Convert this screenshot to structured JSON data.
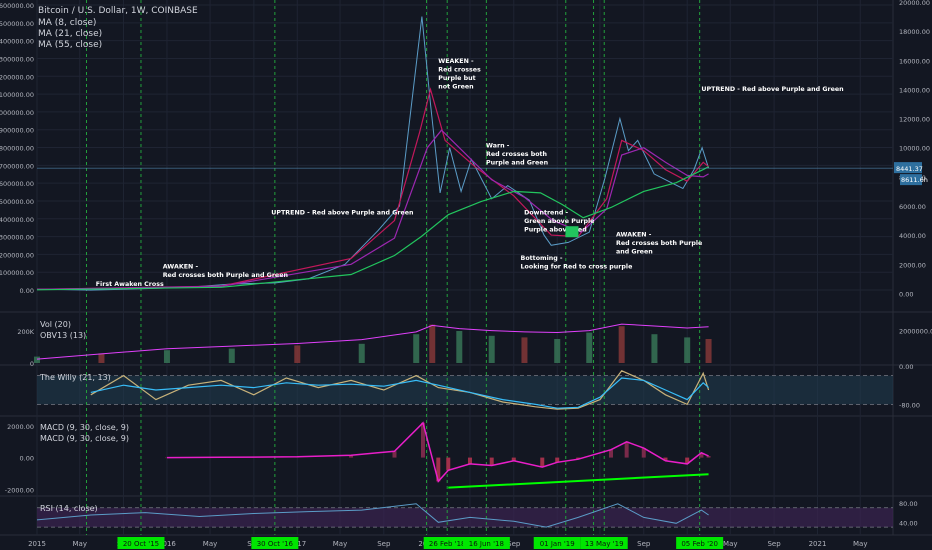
{
  "header": {
    "title": "Bitcoin / U.S. Dollar, 1W, COINBASE",
    "ma_labels": [
      "MA (8, close)",
      "MA (21, close)",
      "MA (55, close)"
    ]
  },
  "chart_data": [
    {
      "type": "line",
      "panel": "price",
      "title": "Bitcoin / U.S. Dollar, 1W, COINBASE",
      "x_range": [
        "2015-01-01",
        "2021-08-01"
      ],
      "left_axis": {
        "ticks": [
          "1600000.00",
          "1500000.00",
          "1400000.00",
          "1300000.00",
          "1200000.00",
          "1100000.00",
          "1000000.00",
          "900000.00",
          "800000.00",
          "700000.00",
          "600000.00",
          "500000.00",
          "400000.00",
          "300000.00",
          "200000.00",
          "100000.00",
          "0.00"
        ],
        "range": [
          0,
          1600000
        ]
      },
      "right_axis": {
        "ticks": [
          "20000.00",
          "18000.00",
          "16000.00",
          "14000.00",
          "12000.00",
          "10000.00",
          "8000.00",
          "6000.00",
          "4000.00",
          "2000.00",
          "0.00"
        ],
        "range": [
          -1000,
          20000
        ]
      },
      "series": [
        {
          "name": "Price",
          "axis": "right",
          "color": "#5b9cc7",
          "x": [
            "2015-01-01",
            "2015-06-01",
            "2015-11-01",
            "2016-03-01",
            "2016-07-01",
            "2016-11-01",
            "2017-02-01",
            "2017-05-15",
            "2017-08-15",
            "2017-10-15",
            "2017-12-17",
            "2018-01-10",
            "2018-02-06",
            "2018-03-05",
            "2018-04-06",
            "2018-05-05",
            "2018-07-01",
            "2018-08-15",
            "2018-10-15",
            "2018-11-25",
            "2018-12-15",
            "2019-02-01",
            "2019-04-01",
            "2019-05-15",
            "2019-06-26",
            "2019-07-20",
            "2019-08-15",
            "2019-09-30",
            "2019-11-25",
            "2019-12-20",
            "2020-01-20",
            "2020-02-12",
            "2020-03-01"
          ],
          "values": [
            300,
            230,
            330,
            420,
            650,
            720,
            1000,
            2000,
            4300,
            6000,
            19000,
            13000,
            6900,
            10000,
            7000,
            9200,
            6500,
            7400,
            6400,
            4000,
            3300,
            3500,
            4200,
            7900,
            12000,
            9800,
            10500,
            8200,
            7500,
            7200,
            8500,
            10000,
            8600
          ]
        },
        {
          "name": "MA (8, close)",
          "axis": "right",
          "color": "#c2185b",
          "x": [
            "2015-01-01",
            "2016-06-01",
            "2017-06-01",
            "2017-10-01",
            "2017-12-10",
            "2018-01-10",
            "2018-02-20",
            "2018-05-15",
            "2018-09-01",
            "2018-12-15",
            "2019-03-01",
            "2019-05-20",
            "2019-07-01",
            "2019-09-01",
            "2019-11-01",
            "2020-01-01",
            "2020-02-15",
            "2020-03-01"
          ],
          "values": [
            280,
            500,
            2400,
            5000,
            11000,
            14000,
            10500,
            8700,
            6700,
            4000,
            3900,
            6500,
            10500,
            9800,
            8500,
            7700,
            9000,
            8700
          ]
        },
        {
          "name": "MA (21, close)",
          "axis": "right",
          "color": "#9c27b0",
          "x": [
            "2015-01-01",
            "2016-06-01",
            "2017-06-01",
            "2017-10-01",
            "2018-01-01",
            "2018-02-10",
            "2018-04-01",
            "2018-07-01",
            "2018-10-01",
            "2018-12-20",
            "2019-03-10",
            "2019-05-20",
            "2019-07-01",
            "2019-09-01",
            "2019-11-01",
            "2020-01-01",
            "2020-02-15",
            "2020-03-01"
          ],
          "values": [
            280,
            480,
            2000,
            3800,
            10000,
            11200,
            10000,
            7800,
            6600,
            5000,
            4200,
            5800,
            9500,
            10000,
            9000,
            8100,
            8000,
            8200
          ]
        },
        {
          "name": "MA (55, close)",
          "axis": "right",
          "color": "#22c55e",
          "x": [
            "2015-01-01",
            "2016-06-01",
            "2017-06-01",
            "2017-10-01",
            "2017-12-15",
            "2018-03-01",
            "2018-06-01",
            "2018-09-01",
            "2018-11-15",
            "2019-01-15",
            "2019-03-15",
            "2019-06-01",
            "2019-09-01",
            "2019-12-01",
            "2020-02-15",
            "2020-03-01"
          ],
          "values": [
            250,
            420,
            1300,
            2600,
            3900,
            5400,
            6300,
            7000,
            6900,
            6100,
            5200,
            5900,
            7000,
            7600,
            8500,
            8700
          ]
        }
      ],
      "price_labels": [
        "8441.37",
        "8611.6h"
      ],
      "annotations": [
        {
          "lines": [
            "First Awaken Cross"
          ],
          "date": "2015-06-15",
          "value": 500
        },
        {
          "lines": [
            "AWAKEN -",
            "Red crosses both Purple and Green"
          ],
          "date": "2015-12-20",
          "value": 1700
        },
        {
          "lines": [
            "UPTREND - Red above Purple and Green"
          ],
          "date": "2016-10-20",
          "value": 5400
        },
        {
          "lines": [
            "WEAKEN -",
            "Red crosses",
            "Purple but",
            "not Green"
          ],
          "date": "2018-02-01",
          "value": 15800
        },
        {
          "lines": [
            "Warn -",
            "Red crosses both",
            "Purple and Green"
          ],
          "date": "2018-06-15",
          "value": 10000
        },
        {
          "lines": [
            "Downtrend -",
            "Green above Purple",
            "Purple above Red"
          ],
          "date": "2018-09-30",
          "value": 5400
        },
        {
          "lines": [
            "Bottoming -",
            "Looking for Red to cross purple"
          ],
          "date": "2018-09-20",
          "value": 2300
        },
        {
          "lines": [
            "AWAKEN -",
            "Red crosses both Purple",
            "and Green"
          ],
          "date": "2019-06-15",
          "value": 3900
        },
        {
          "lines": [
            "UPTREND - Red above Purple and Green"
          ],
          "date": "2020-02-10",
          "value": 13900
        }
      ],
      "vertical_markers": [
        "2015-05-20",
        "2015-10-20",
        "2016-10-30",
        "2017-12-30",
        "2018-02-26",
        "2018-06-16",
        "2019-01-25",
        "2019-04-13",
        "2019-05-13",
        "2020-02-05"
      ]
    },
    {
      "type": "bar",
      "panel": "volume",
      "labels": [
        "Vol (20)",
        "OBV13 (13)"
      ],
      "left_axis": {
        "ticks": [
          "200K",
          "0"
        ],
        "range": [
          0,
          300000
        ]
      },
      "right_axis": {
        "ticks": [
          "2000000.00"
        ]
      },
      "x": [
        "2015-01-01",
        "2015-07-01",
        "2016-01-01",
        "2016-07-01",
        "2017-01-01",
        "2017-07-01",
        "2017-12-01",
        "2018-01-15",
        "2018-04-01",
        "2018-07-01",
        "2018-10-01",
        "2019-01-01",
        "2019-04-01",
        "2019-07-01",
        "2019-10-01",
        "2020-01-01",
        "2020-03-01"
      ],
      "values": [
        40000,
        60000,
        80000,
        90000,
        110000,
        120000,
        180000,
        240000,
        200000,
        170000,
        160000,
        150000,
        190000,
        230000,
        180000,
        160000,
        150000
      ],
      "obv_line": [
        -200000,
        200000,
        600000,
        800000,
        1000000,
        1300000,
        1900000,
        2400000,
        2150000,
        2000000,
        1900000,
        1850000,
        2000000,
        2500000,
        2350000,
        2200000,
        2300000
      ]
    },
    {
      "type": "line",
      "panel": "the-willy",
      "label": "The Willy (21, 13)",
      "right_axis": {
        "ticks": [
          "0.00",
          "-80.00"
        ],
        "range": [
          -100,
          0
        ]
      },
      "levels": [
        -20,
        -80
      ],
      "x": [
        "2015-06-01",
        "2015-09-01",
        "2015-12-01",
        "2016-03-01",
        "2016-06-01",
        "2016-09-01",
        "2016-12-01",
        "2017-03-01",
        "2017-06-01",
        "2017-09-01",
        "2017-12-01",
        "2018-02-01",
        "2018-05-01",
        "2018-08-01",
        "2018-11-01",
        "2019-01-01",
        "2019-03-01",
        "2019-05-01",
        "2019-07-01",
        "2019-09-01",
        "2019-11-01",
        "2020-01-01",
        "2020-02-15",
        "2020-03-01"
      ],
      "series": [
        {
          "name": "fast",
          "color": "#c8b27a",
          "values": [
            -60,
            -20,
            -70,
            -40,
            -30,
            -60,
            -25,
            -45,
            -30,
            -50,
            -20,
            -45,
            -55,
            -75,
            -85,
            -90,
            -88,
            -70,
            -10,
            -30,
            -60,
            -80,
            -15,
            -50
          ]
        },
        {
          "name": "slow",
          "color": "#38bdf8",
          "values": [
            -55,
            -40,
            -50,
            -45,
            -40,
            -45,
            -35,
            -40,
            -38,
            -42,
            -30,
            -40,
            -55,
            -70,
            -80,
            -88,
            -86,
            -65,
            -25,
            -30,
            -50,
            -70,
            -35,
            -45
          ]
        }
      ]
    },
    {
      "type": "bar",
      "panel": "macd",
      "labels": [
        "MACD (9, 30, close, 9)",
        "MACD (9, 30, close, 9)"
      ],
      "right_axis": {
        "ticks": [
          "2000.00",
          "0.00",
          "-2000.00"
        ],
        "range": [
          -2300,
          2500
        ]
      },
      "x": [
        "2016-01-01",
        "2016-06-01",
        "2017-01-01",
        "2017-06-01",
        "2017-10-01",
        "2017-12-20",
        "2018-02-01",
        "2018-03-01",
        "2018-05-01",
        "2018-07-01",
        "2018-09-01",
        "2018-11-20",
        "2019-01-01",
        "2019-03-01",
        "2019-06-01",
        "2019-07-15",
        "2019-09-01",
        "2019-11-01",
        "2020-01-01",
        "2020-02-10",
        "2020-03-01"
      ],
      "values": [
        0,
        20,
        50,
        150,
        400,
        2200,
        -1500,
        -800,
        -400,
        -500,
        -200,
        -600,
        -300,
        -100,
        500,
        1000,
        600,
        -200,
        -400,
        300,
        100
      ],
      "trendline": {
        "from": [
          "2018-03-01",
          -1900
        ],
        "to": [
          "2020-03-01",
          -1050
        ],
        "color": "#00ff00"
      }
    },
    {
      "type": "line",
      "panel": "rsi",
      "label": "RSI (14, close)",
      "right_axis": {
        "ticks": [
          "80.00",
          "40.00"
        ],
        "range": [
          20,
          90
        ]
      },
      "levels": [
        70,
        30
      ],
      "x": [
        "2015-01-01",
        "2015-06-01",
        "2015-11-01",
        "2016-04-01",
        "2016-09-01",
        "2017-02-01",
        "2017-07-01",
        "2017-12-01",
        "2018-02-01",
        "2018-05-01",
        "2018-09-01",
        "2018-12-01",
        "2019-03-01",
        "2019-06-20",
        "2019-09-01",
        "2019-12-01",
        "2020-02-10",
        "2020-03-01"
      ],
      "values": [
        45,
        55,
        60,
        52,
        58,
        62,
        65,
        78,
        40,
        50,
        42,
        30,
        50,
        78,
        50,
        38,
        65,
        55
      ]
    }
  ],
  "time_axis": {
    "ticks": [
      "2015",
      "May",
      "Sep",
      "2016",
      "May",
      "Sep",
      "2017",
      "May",
      "Sep",
      "2018",
      "May",
      "Sep",
      "2019",
      "May",
      "Sep",
      "2020",
      "May",
      "Sep",
      "2021",
      "May"
    ],
    "highlighted_dates": [
      "20 Oct '15",
      "30 Oct '16",
      "26 Feb '18",
      "16 Jun '18",
      "01 Jan '19",
      "13 May '19",
      "05 Feb '20"
    ]
  },
  "colors": {
    "background": "#131722",
    "grid": "#1f2433",
    "marker": "#22a03c",
    "highlight": "#00e600"
  }
}
